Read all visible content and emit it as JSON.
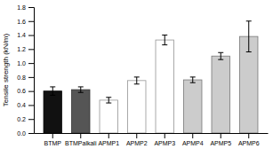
{
  "chart_data": {
    "type": "bar",
    "categories": [
      "BTMP",
      "BTMPalkali",
      "APMP1",
      "APMP2",
      "APMP3",
      "APMP4",
      "APMP5",
      "APMP6"
    ],
    "values": [
      0.6,
      0.62,
      0.47,
      0.75,
      1.33,
      0.76,
      1.1,
      1.38
    ],
    "errors": [
      0.06,
      0.04,
      0.04,
      0.05,
      0.07,
      0.04,
      0.05,
      0.22
    ],
    "colors": [
      "#111111",
      "#555555",
      "#ffffff",
      "#ffffff",
      "#ffffff",
      "#cccccc",
      "#cccccc",
      "#cccccc"
    ],
    "ylabel": "Tensile strength (kN/m)",
    "ylim": [
      0,
      1.8
    ],
    "yticks": [
      {
        "value": 0,
        "label": "0.0"
      },
      0.2,
      0.4,
      0.6,
      0.8,
      {
        "value": 1.0,
        "label": "1.0"
      },
      1.2,
      1.4,
      1.6,
      1.8
    ],
    "grid": false
  }
}
